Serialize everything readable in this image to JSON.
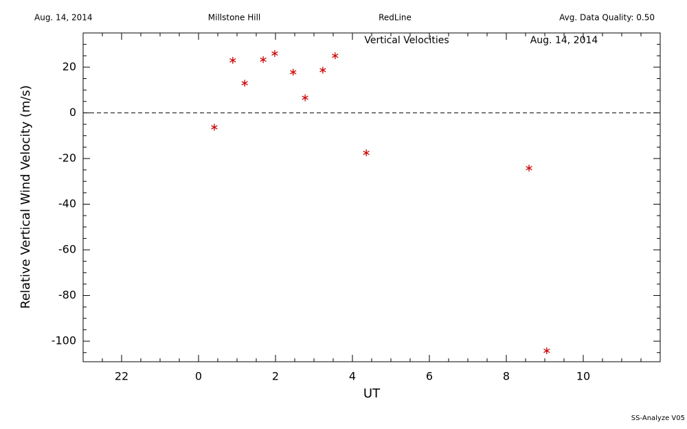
{
  "chart_data": {
    "type": "scatter",
    "header": [
      "Aug. 14, 2014",
      "Millstone Hill",
      "RedLine",
      "Avg. Data Quality: 0.50"
    ],
    "title": "Vertical Velocities",
    "subtitle": "Aug. 14, 2014",
    "xlabel": "UT",
    "ylabel": "Relative Vertical Wind Velocity (m/s)",
    "footer": "SS-Analyze V05",
    "color": "#cc0000",
    "marker": "asterisk",
    "zero_line": true,
    "x": [
      0.41,
      0.89,
      1.2,
      1.68,
      1.98,
      2.46,
      2.77,
      3.23,
      3.55,
      4.36,
      8.59,
      9.05
    ],
    "values": [
      -6.3,
      23,
      13,
      23.3,
      26,
      17.8,
      6.6,
      18.7,
      25,
      -17.5,
      -24.2,
      -104.2
    ],
    "xlim": [
      -3,
      12
    ],
    "ylim": [
      -109,
      35
    ],
    "xticks": [
      {
        "value": -2,
        "label": "22"
      },
      0,
      2,
      4,
      6,
      8,
      10
    ],
    "yticks": [
      -100,
      -80,
      -60,
      -40,
      -20,
      0,
      20
    ],
    "xminorticks": [
      -3,
      -2.5,
      -1.5,
      -1,
      -0.5,
      0.5,
      1,
      1.5,
      2.5,
      3,
      3.5,
      4.5,
      5,
      5.5,
      6.5,
      7,
      7.5,
      8.5,
      9,
      9.5,
      10.5,
      11,
      11.5,
      12
    ],
    "yminorticks": [
      -105,
      -95,
      -90,
      -85,
      -75,
      -70,
      -65,
      -55,
      -50,
      -45,
      -35,
      -30,
      -25,
      -15,
      -10,
      -5,
      5,
      10,
      15,
      25,
      30,
      35
    ]
  }
}
